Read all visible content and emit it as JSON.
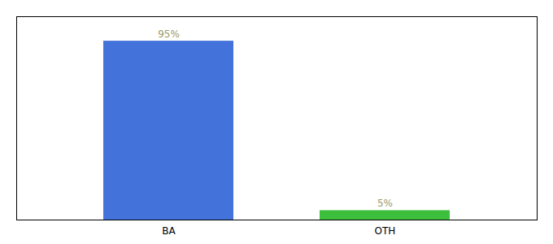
{
  "chart_data": {
    "type": "bar",
    "categories": [
      "BA",
      "OTH"
    ],
    "values": [
      95,
      5
    ],
    "value_labels": [
      "95%",
      "5%"
    ],
    "colors": [
      "#4472db",
      "#3dbf3d"
    ],
    "ylim": [
      0,
      108
    ],
    "data_labels": true,
    "tick_labels": "x",
    "grid": false
  }
}
